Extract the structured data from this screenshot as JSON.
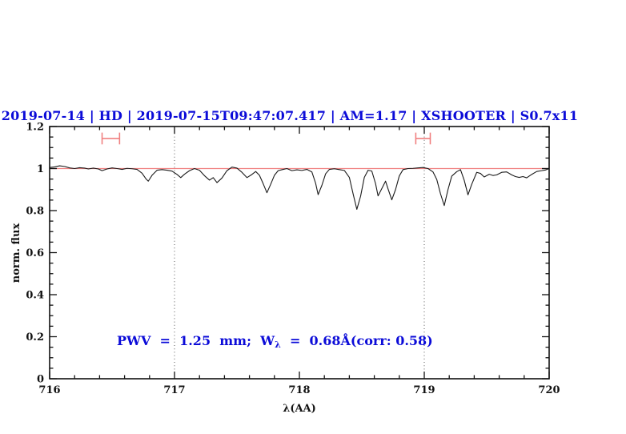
{
  "title": {
    "text": "2019-07-14 | HD | 2019-07-15T09:47:07.417 | AM=1.17 | XSHOOTER | S0.7x11"
  },
  "annotation": {
    "part1": "PWV  =  1.25  mm;  W",
    "subscript": "λ",
    "part2": "  =  0.68Å(corr: 0.58)"
  },
  "colors": {
    "blue": "#0b0bd8",
    "salmon": "#f08080",
    "spectrum": "#1a1a1a",
    "frame": "#111111",
    "dotted": "#555555"
  },
  "axes": {
    "x": {
      "label": "λ(AA)",
      "min": 716,
      "max": 720,
      "minor_step": 0.2,
      "ticks": [
        {
          "v": 716,
          "label": "716"
        },
        {
          "v": 717,
          "label": "717"
        },
        {
          "v": 718,
          "label": "718"
        },
        {
          "v": 719,
          "label": "719"
        },
        {
          "v": 720,
          "label": "720"
        }
      ]
    },
    "y": {
      "label": "norm. flux",
      "min": 0,
      "max": 1.2,
      "minor_step": 0.05,
      "ticks": [
        {
          "v": 0,
          "label": "0"
        },
        {
          "v": 0.2,
          "label": "0.2"
        },
        {
          "v": 0.4,
          "label": "0.4"
        },
        {
          "v": 0.6,
          "label": "0.6"
        },
        {
          "v": 0.8,
          "label": "0.8"
        },
        {
          "v": 1,
          "label": "1"
        },
        {
          "v": 1.2,
          "label": "1.2"
        }
      ]
    }
  },
  "chart_data": {
    "type": "line",
    "title": "2019-07-14 | HD | 2019-07-15T09:47:07.417 | AM=1.17 | XSHOOTER | S0.7x11",
    "xlabel": "λ(AA)",
    "ylabel": "norm. flux",
    "xlim": [
      716,
      720
    ],
    "ylim": [
      0,
      1.2
    ],
    "grid": false,
    "legend": false,
    "reference_line": {
      "y": 1.0
    },
    "dotted_vlines": [
      717,
      719
    ],
    "range_markers": [
      {
        "x_center": 716.49,
        "x_half_width": 0.07,
        "y": 1.143,
        "cap_half_height": 0.028
      },
      {
        "x_center": 718.99,
        "x_half_width": 0.058,
        "y": 1.143,
        "cap_half_height": 0.028
      }
    ],
    "series": [
      {
        "name": "normalized telluric spectrum",
        "points": [
          [
            716.0,
            1.005
          ],
          [
            716.04,
            1.008
          ],
          [
            716.08,
            1.013
          ],
          [
            716.12,
            1.01
          ],
          [
            716.16,
            1.003
          ],
          [
            716.2,
            1.0
          ],
          [
            716.24,
            1.004
          ],
          [
            716.28,
            1.002
          ],
          [
            716.31,
            0.998
          ],
          [
            716.35,
            1.002
          ],
          [
            716.39,
            0.998
          ],
          [
            716.42,
            0.99
          ],
          [
            716.46,
            0.998
          ],
          [
            716.5,
            1.003
          ],
          [
            716.54,
            1.0
          ],
          [
            716.58,
            0.996
          ],
          [
            716.62,
            1.001
          ],
          [
            716.66,
            0.999
          ],
          [
            716.7,
            0.996
          ],
          [
            716.74,
            0.978
          ],
          [
            716.77,
            0.952
          ],
          [
            716.79,
            0.94
          ],
          [
            716.82,
            0.968
          ],
          [
            716.86,
            0.992
          ],
          [
            716.9,
            0.995
          ],
          [
            716.94,
            0.992
          ],
          [
            716.98,
            0.988
          ],
          [
            717.02,
            0.972
          ],
          [
            717.05,
            0.957
          ],
          [
            717.08,
            0.973
          ],
          [
            717.12,
            0.99
          ],
          [
            717.16,
            1.0
          ],
          [
            717.2,
            0.992
          ],
          [
            717.24,
            0.966
          ],
          [
            717.28,
            0.945
          ],
          [
            717.31,
            0.957
          ],
          [
            717.34,
            0.933
          ],
          [
            717.38,
            0.955
          ],
          [
            717.42,
            0.99
          ],
          [
            717.46,
            1.007
          ],
          [
            717.5,
            1.002
          ],
          [
            717.54,
            0.982
          ],
          [
            717.58,
            0.957
          ],
          [
            717.62,
            0.972
          ],
          [
            717.65,
            0.986
          ],
          [
            717.68,
            0.968
          ],
          [
            717.71,
            0.928
          ],
          [
            717.74,
            0.885
          ],
          [
            717.77,
            0.925
          ],
          [
            717.8,
            0.968
          ],
          [
            717.83,
            0.99
          ],
          [
            717.87,
            0.996
          ],
          [
            717.9,
            1.0
          ],
          [
            717.94,
            0.99
          ],
          [
            717.98,
            0.994
          ],
          [
            718.02,
            0.991
          ],
          [
            718.06,
            0.996
          ],
          [
            718.1,
            0.984
          ],
          [
            718.13,
            0.93
          ],
          [
            718.15,
            0.876
          ],
          [
            718.18,
            0.92
          ],
          [
            718.21,
            0.975
          ],
          [
            718.24,
            0.996
          ],
          [
            718.28,
            0.999
          ],
          [
            718.32,
            0.995
          ],
          [
            718.36,
            0.991
          ],
          [
            718.4,
            0.958
          ],
          [
            718.43,
            0.88
          ],
          [
            718.46,
            0.806
          ],
          [
            718.49,
            0.868
          ],
          [
            718.52,
            0.958
          ],
          [
            718.55,
            0.992
          ],
          [
            718.58,
            0.988
          ],
          [
            718.61,
            0.928
          ],
          [
            718.63,
            0.87
          ],
          [
            718.66,
            0.905
          ],
          [
            718.69,
            0.94
          ],
          [
            718.71,
            0.903
          ],
          [
            718.74,
            0.851
          ],
          [
            718.77,
            0.9
          ],
          [
            718.8,
            0.965
          ],
          [
            718.83,
            0.995
          ],
          [
            718.87,
            1.0
          ],
          [
            718.91,
            1.001
          ],
          [
            718.95,
            1.003
          ],
          [
            718.99,
            1.005
          ],
          [
            719.03,
            1.0
          ],
          [
            719.07,
            0.984
          ],
          [
            719.1,
            0.948
          ],
          [
            719.13,
            0.88
          ],
          [
            719.16,
            0.824
          ],
          [
            719.19,
            0.9
          ],
          [
            719.22,
            0.964
          ],
          [
            719.26,
            0.985
          ],
          [
            719.29,
            0.995
          ],
          [
            719.32,
            0.944
          ],
          [
            719.35,
            0.875
          ],
          [
            719.38,
            0.925
          ],
          [
            719.42,
            0.982
          ],
          [
            719.45,
            0.977
          ],
          [
            719.48,
            0.96
          ],
          [
            719.52,
            0.973
          ],
          [
            719.55,
            0.967
          ],
          [
            719.58,
            0.97
          ],
          [
            719.62,
            0.982
          ],
          [
            719.66,
            0.984
          ],
          [
            719.7,
            0.97
          ],
          [
            719.73,
            0.962
          ],
          [
            719.76,
            0.958
          ],
          [
            719.79,
            0.962
          ],
          [
            719.82,
            0.956
          ],
          [
            719.86,
            0.972
          ],
          [
            719.9,
            0.986
          ],
          [
            719.94,
            0.99
          ],
          [
            719.97,
            0.993
          ],
          [
            720.0,
            1.0
          ]
        ]
      }
    ]
  }
}
